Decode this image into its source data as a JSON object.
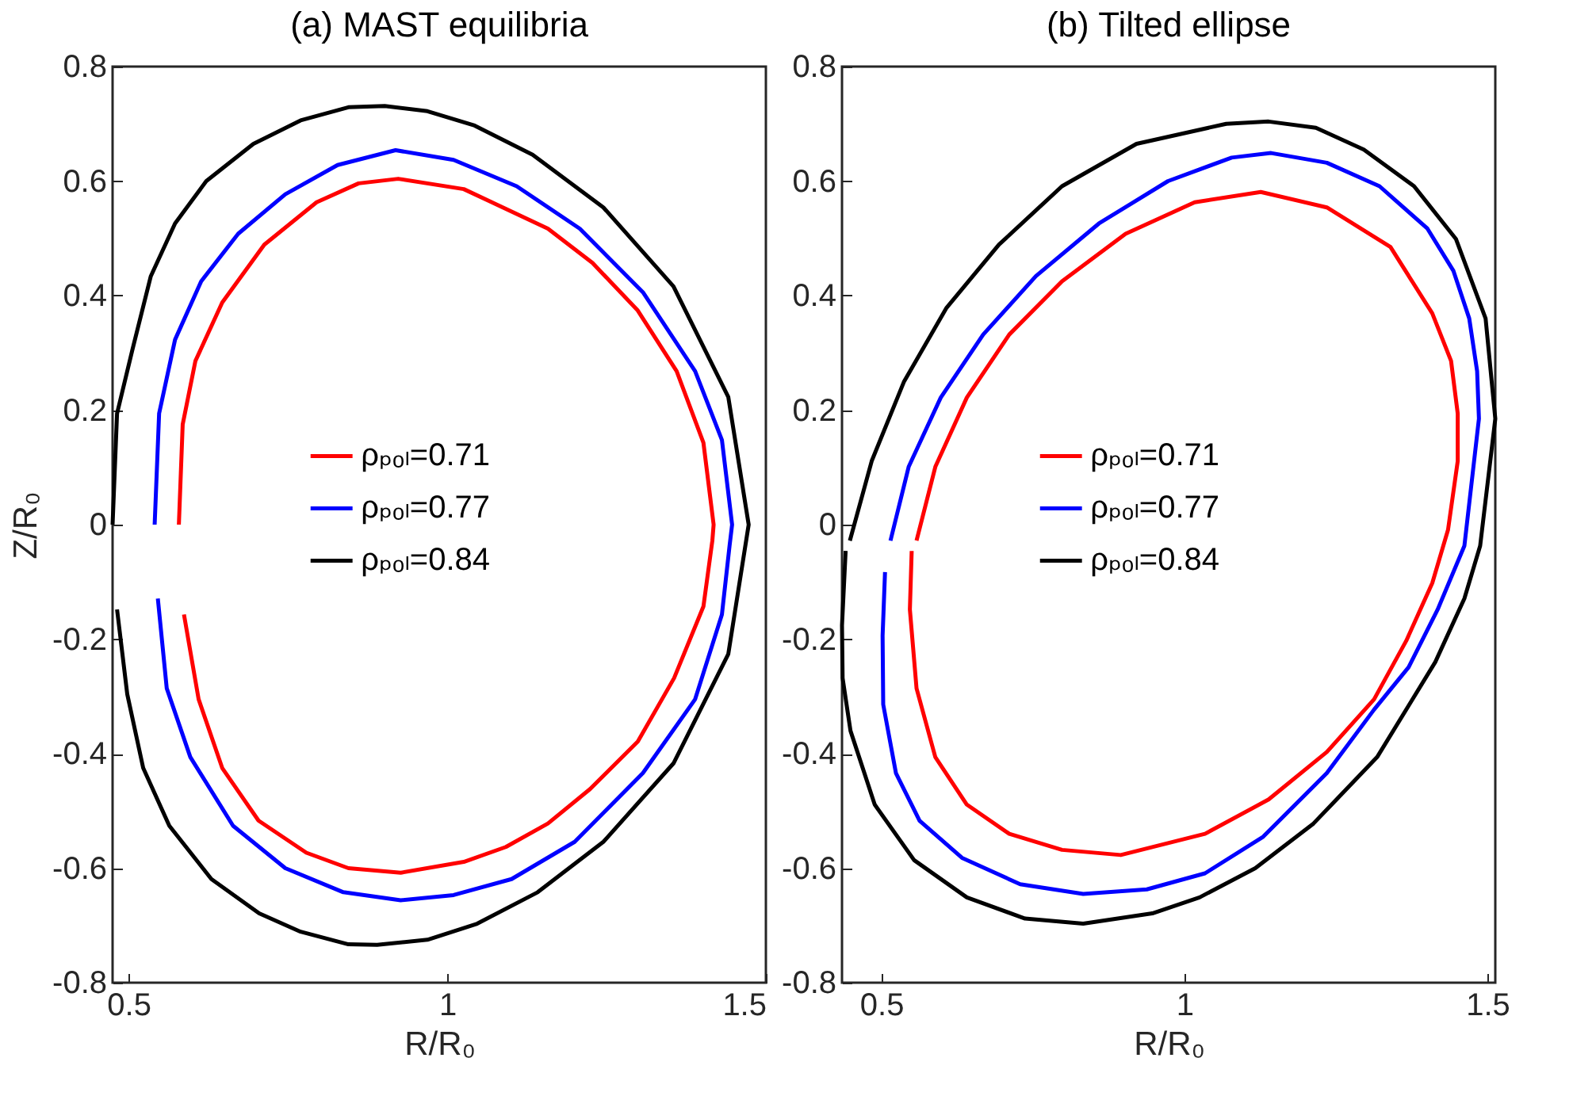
{
  "chart_data": [
    {
      "type": "line",
      "title": "(a) MAST equilibria",
      "xlabel": "R/R₀",
      "ylabel": "Z/R₀",
      "xlim": [
        0.475,
        1.5
      ],
      "xticks": [
        0.5,
        1,
        1.5
      ],
      "ylim": [
        -0.8,
        0.8
      ],
      "yticks": [
        -0.8,
        -0.6,
        -0.4,
        -0.2,
        0,
        0.2,
        0.4,
        0.6,
        0.8
      ],
      "legend": "center",
      "series": [
        {
          "name": "ρₚₒₗ=0.71",
          "color": "#ff0000",
          "x": [
            0.579,
            0.585,
            0.605,
            0.647,
            0.713,
            0.795,
            0.861,
            0.923,
            1.026,
            1.158,
            1.228,
            1.299,
            1.36,
            1.402,
            1.418,
            1.416,
            1.402,
            1.356,
            1.299,
            1.224,
            1.158,
            1.092,
            1.026,
            0.927,
            0.845,
            0.779,
            0.704,
            0.647,
            0.61,
            0.587
          ],
          "values": [
            0,
            0.175,
            0.286,
            0.388,
            0.489,
            0.563,
            0.596,
            0.604,
            0.586,
            0.517,
            0.457,
            0.374,
            0.268,
            0.143,
            0,
            -0.028,
            -0.143,
            -0.268,
            -0.379,
            -0.462,
            -0.522,
            -0.563,
            -0.589,
            -0.608,
            -0.6,
            -0.573,
            -0.517,
            -0.425,
            -0.305,
            -0.157
          ]
        },
        {
          "name": "ρₚₒₗ=0.77",
          "color": "#0000ff",
          "x": [
            0.541,
            0.548,
            0.573,
            0.614,
            0.672,
            0.746,
            0.828,
            0.919,
            1.01,
            1.109,
            1.208,
            1.307,
            1.389,
            1.431,
            1.447,
            1.443,
            1.431,
            1.389,
            1.307,
            1.2,
            1.101,
            1.01,
            0.927,
            0.837,
            0.746,
            0.664,
            0.597,
            0.56,
            0.546
          ],
          "values": [
            0,
            0.194,
            0.323,
            0.425,
            0.508,
            0.577,
            0.628,
            0.654,
            0.637,
            0.591,
            0.517,
            0.406,
            0.268,
            0.148,
            0,
            -0.037,
            -0.157,
            -0.305,
            -0.434,
            -0.554,
            -0.619,
            -0.647,
            -0.656,
            -0.642,
            -0.6,
            -0.526,
            -0.406,
            -0.286,
            -0.129
          ]
        },
        {
          "name": "ρₚₒₗ=0.84",
          "color": "#000000",
          "x": [
            0.475,
            0.482,
            0.506,
            0.535,
            0.573,
            0.622,
            0.696,
            0.77,
            0.845,
            0.902,
            0.969,
            1.043,
            1.134,
            1.245,
            1.355,
            1.441,
            1.473,
            1.441,
            1.355,
            1.245,
            1.142,
            1.047,
            0.969,
            0.89,
            0.845,
            0.77,
            0.705,
            0.63,
            0.564,
            0.523,
            0.498,
            0.482
          ],
          "values": [
            0,
            0.194,
            0.305,
            0.434,
            0.526,
            0.6,
            0.665,
            0.706,
            0.729,
            0.731,
            0.722,
            0.697,
            0.646,
            0.554,
            0.416,
            0.223,
            0,
            -0.226,
            -0.417,
            -0.554,
            -0.642,
            -0.697,
            -0.725,
            -0.734,
            -0.733,
            -0.711,
            -0.679,
            -0.619,
            -0.526,
            -0.425,
            -0.296,
            -0.148
          ]
        }
      ]
    },
    {
      "type": "line",
      "title": "(b) Tilted ellipse",
      "xlabel": "R/R₀",
      "xlim": [
        0.435,
        1.513
      ],
      "xticks": [
        0.5,
        1,
        1.5
      ],
      "ylim": [
        -0.8,
        0.8
      ],
      "yticks": [
        -0.8,
        -0.6,
        -0.4,
        -0.2,
        0,
        0.2,
        0.4,
        0.6,
        0.8
      ],
      "legend": "center",
      "series": [
        {
          "name": "ρₚₒₗ=0.71",
          "color": "#ff0000",
          "x": [
            0.558,
            0.589,
            0.641,
            0.711,
            0.798,
            0.903,
            1.017,
            1.126,
            1.235,
            1.34,
            1.409,
            1.44,
            1.451,
            1.451,
            1.435,
            1.409,
            1.366,
            1.313,
            1.235,
            1.139,
            1.034,
            0.895,
            0.798,
            0.711,
            0.641,
            0.589,
            0.558,
            0.547,
            0.55
          ],
          "values": [
            -0.028,
            0.101,
            0.222,
            0.332,
            0.425,
            0.508,
            0.563,
            0.581,
            0.554,
            0.485,
            0.369,
            0.286,
            0.194,
            0.111,
            -0.009,
            -0.102,
            -0.203,
            -0.305,
            -0.397,
            -0.48,
            -0.54,
            -0.577,
            -0.568,
            -0.54,
            -0.489,
            -0.406,
            -0.286,
            -0.148,
            -0.046
          ]
        },
        {
          "name": "ρₚₒₗ=0.77",
          "color": "#0000ff",
          "x": [
            0.515,
            0.545,
            0.598,
            0.668,
            0.755,
            0.859,
            0.973,
            1.078,
            1.143,
            1.235,
            1.322,
            1.401,
            1.444,
            1.47,
            1.483,
            1.486,
            1.462,
            1.418,
            1.37,
            1.313,
            1.235,
            1.13,
            1.034,
            0.938,
            0.833,
            0.729,
            0.633,
            0.563,
            0.524,
            0.503,
            0.502,
            0.506
          ],
          "values": [
            -0.028,
            0.101,
            0.222,
            0.332,
            0.434,
            0.526,
            0.6,
            0.641,
            0.649,
            0.632,
            0.591,
            0.517,
            0.443,
            0.36,
            0.268,
            0.185,
            -0.037,
            -0.148,
            -0.249,
            -0.323,
            -0.434,
            -0.545,
            -0.609,
            -0.637,
            -0.645,
            -0.628,
            -0.582,
            -0.517,
            -0.434,
            -0.314,
            -0.194,
            -0.083
          ]
        },
        {
          "name": "ρₚₒₗ=0.84",
          "color": "#000000",
          "x": [
            0.448,
            0.484,
            0.537,
            0.607,
            0.694,
            0.798,
            0.921,
            1.069,
            1.139,
            1.217,
            1.296,
            1.379,
            1.448,
            1.497,
            1.513,
            1.488,
            1.462,
            1.414,
            1.318,
            1.213,
            1.117,
            1.025,
            0.947,
            0.833,
            0.737,
            0.641,
            0.554,
            0.489,
            0.449,
            0.436,
            0.435,
            0.441
          ],
          "values": [
            -0.028,
            0.111,
            0.249,
            0.378,
            0.489,
            0.591,
            0.665,
            0.7,
            0.704,
            0.693,
            0.655,
            0.591,
            0.499,
            0.36,
            0.185,
            -0.037,
            -0.129,
            -0.24,
            -0.406,
            -0.522,
            -0.6,
            -0.651,
            -0.679,
            -0.697,
            -0.688,
            -0.651,
            -0.586,
            -0.489,
            -0.36,
            -0.268,
            -0.176,
            -0.046
          ]
        }
      ]
    }
  ]
}
